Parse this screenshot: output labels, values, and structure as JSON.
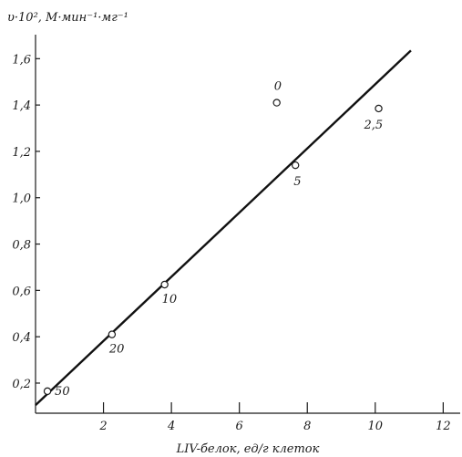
{
  "chart_data": {
    "type": "scatter",
    "ylabel": "υ·10², М·мин⁻¹·мг⁻¹",
    "xlabel": "LIV-белок, ед/г клеток",
    "xlim": [
      0,
      12.5
    ],
    "ylim": [
      0.07,
      1.68
    ],
    "x_ticks": [
      {
        "value": 2,
        "label": "2"
      },
      {
        "value": 4,
        "label": "4"
      },
      {
        "value": 6,
        "label": "6"
      },
      {
        "value": 8,
        "label": "8"
      },
      {
        "value": 10,
        "label": "10"
      },
      {
        "value": 12,
        "label": "12"
      }
    ],
    "y_ticks": [
      {
        "value": 0.2,
        "label": "0,2"
      },
      {
        "value": 0.4,
        "label": "0,4"
      },
      {
        "value": 0.6,
        "label": "0,6"
      },
      {
        "value": 0.8,
        "label": "0,8"
      },
      {
        "value": 1.0,
        "label": "1,0"
      },
      {
        "value": 1.2,
        "label": "1,2"
      },
      {
        "value": 1.4,
        "label": "1,4"
      },
      {
        "value": 1.6,
        "label": "1,6"
      }
    ],
    "points": [
      {
        "x": 0.35,
        "y": 0.165,
        "label": "50"
      },
      {
        "x": 2.25,
        "y": 0.41,
        "label": "20"
      },
      {
        "x": 3.8,
        "y": 0.625,
        "label": "10"
      },
      {
        "x": 7.65,
        "y": 1.14,
        "label": "5"
      },
      {
        "x": 10.1,
        "y": 1.385,
        "label": "2,5"
      },
      {
        "x": 7.1,
        "y": 1.41,
        "label": "0"
      }
    ],
    "fit_line": {
      "x": [
        0,
        11.05
      ],
      "y": [
        0.105,
        1.635
      ]
    }
  }
}
